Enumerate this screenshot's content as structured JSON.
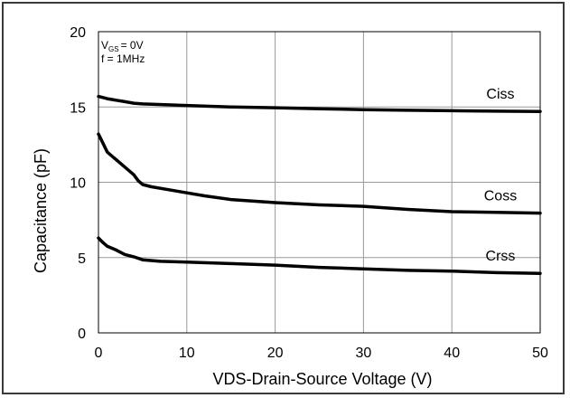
{
  "chart_data": {
    "type": "line",
    "xlabel": "VDS-Drain-Source Voltage (V)",
    "ylabel": "Capacitance (pF)",
    "xlim": [
      0,
      50
    ],
    "ylim": [
      0,
      20
    ],
    "xticks": [
      "0",
      "10",
      "20",
      "30",
      "40",
      "50"
    ],
    "yticks": [
      "0",
      "5",
      "10",
      "15",
      "20"
    ],
    "grid": true,
    "conditions": {
      "vgs_sub": "GS",
      "vgs_prefix": "V",
      "vgs_suffix": "= 0V",
      "freq": "f = 1MHz"
    },
    "series": [
      {
        "name": "Ciss",
        "color": "#000000",
        "x": [
          0,
          1,
          2,
          3,
          4,
          5,
          10,
          15,
          20,
          25,
          30,
          35,
          40,
          45,
          50
        ],
        "y": [
          15.7,
          15.55,
          15.45,
          15.35,
          15.25,
          15.2,
          15.1,
          15.0,
          14.95,
          14.88,
          14.82,
          14.78,
          14.75,
          14.72,
          14.7
        ]
      },
      {
        "name": "Coss",
        "color": "#000000",
        "x": [
          0,
          0.5,
          1,
          2,
          3,
          4,
          4.5,
          5,
          6,
          8,
          10,
          12,
          15,
          20,
          25,
          30,
          35,
          40,
          45,
          50
        ],
        "y": [
          13.2,
          12.6,
          12.0,
          11.5,
          11.0,
          10.5,
          10.1,
          9.85,
          9.7,
          9.5,
          9.3,
          9.1,
          8.85,
          8.65,
          8.5,
          8.4,
          8.2,
          8.05,
          8.0,
          7.95
        ]
      },
      {
        "name": "Crss",
        "color": "#000000",
        "x": [
          0,
          0.5,
          1,
          2,
          3,
          4,
          5,
          7,
          10,
          15,
          20,
          25,
          30,
          35,
          40,
          45,
          50
        ],
        "y": [
          6.3,
          6.0,
          5.75,
          5.5,
          5.2,
          5.05,
          4.85,
          4.75,
          4.7,
          4.6,
          4.5,
          4.35,
          4.25,
          4.15,
          4.1,
          4.0,
          3.95
        ]
      }
    ]
  }
}
